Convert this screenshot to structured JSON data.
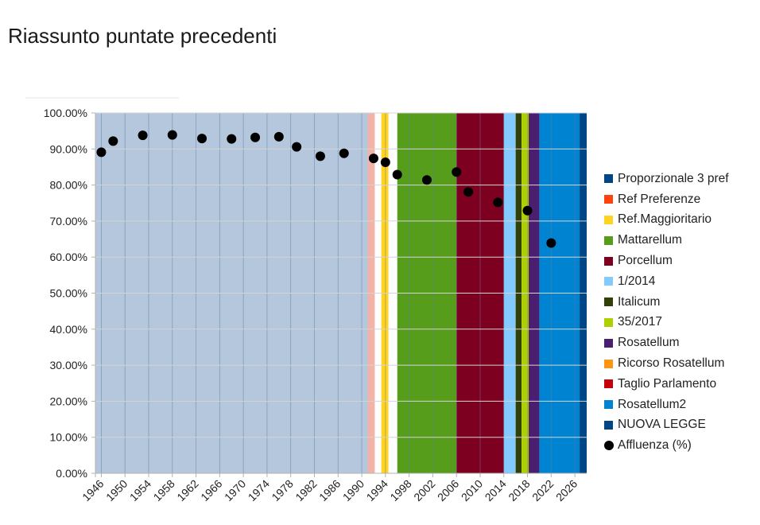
{
  "slide_title": "Riassunto puntate precedenti",
  "chart_data": {
    "type": "scatter",
    "title": "",
    "xlabel": "",
    "ylabel": "",
    "xlim": [
      1945,
      2028
    ],
    "ylim": [
      0,
      100
    ],
    "y_ticks": [
      "0.00%",
      "10.00%",
      "20.00%",
      "30.00%",
      "40.00%",
      "50.00%",
      "60.00%",
      "70.00%",
      "80.00%",
      "90.00%",
      "100.00%"
    ],
    "x_ticks": [
      "1946",
      "1950",
      "1954",
      "1958",
      "1962",
      "1966",
      "1970",
      "1974",
      "1978",
      "1982",
      "1986",
      "1990",
      "1994",
      "1998",
      "2002",
      "2006",
      "2010",
      "2014",
      "2018",
      "2022",
      "2026"
    ],
    "background_periods": [
      {
        "name": "Proporzionale 3 pref",
        "start": 1945,
        "end": 1991,
        "color": "#b4c7dc"
      },
      {
        "name": "Ref Preferenze",
        "start": 1991,
        "end": 1992.2,
        "color": "#f2b3a8"
      },
      {
        "name": "Ref.Maggioritario",
        "start": 1993.3,
        "end": 1994.5,
        "color": "#ffd320"
      },
      {
        "name": "Mattarellum",
        "start": 1996,
        "end": 2006,
        "color": "#579d1c"
      },
      {
        "name": "Porcellum",
        "start": 2006,
        "end": 2014,
        "color": "#7e0021"
      },
      {
        "name": "1/2014",
        "start": 2014,
        "end": 2016,
        "color": "#83caff"
      },
      {
        "name": "Italicum",
        "start": 2016,
        "end": 2017,
        "color": "#314004"
      },
      {
        "name": "35/2017",
        "start": 2017,
        "end": 2018.2,
        "color": "#aecf00"
      },
      {
        "name": "Rosatellum",
        "start": 2018.2,
        "end": 2020,
        "color": "#4b1f6f"
      },
      {
        "name": "Ricorso Rosatellum",
        "start": 2020,
        "end": 2020,
        "color": "#ff950e"
      },
      {
        "name": "Taglio Parlamento",
        "start": 2020,
        "end": 2020,
        "color": "#c5000b"
      },
      {
        "name": "Rosatellum2",
        "start": 2020,
        "end": 2026.8,
        "color": "#0084d1"
      },
      {
        "name": "NUOVA LEGGE",
        "start": 2026.8,
        "end": 2028,
        "color": "#004586"
      }
    ],
    "series": [
      {
        "name": "Affluenza (%)",
        "color": "#000000",
        "x": [
          1946,
          1948,
          1953,
          1958,
          1963,
          1968,
          1972,
          1976,
          1979,
          1983,
          1987,
          1992,
          1994,
          1996,
          2001,
          2006,
          2008,
          2013,
          2018,
          2022
        ],
        "y": [
          89.1,
          92.2,
          93.8,
          93.9,
          92.9,
          92.8,
          93.2,
          93.4,
          90.6,
          88.0,
          88.8,
          87.4,
          86.3,
          82.9,
          81.4,
          83.6,
          78.1,
          75.2,
          72.9,
          63.9
        ]
      }
    ],
    "legend_position": "right"
  },
  "legend": [
    {
      "label": "Proporzionale 3 pref",
      "color": "#004586"
    },
    {
      "label": "Ref Preferenze",
      "color": "#ff420e"
    },
    {
      "label": "Ref.Maggioritario",
      "color": "#ffd320"
    },
    {
      "label": "Mattarellum",
      "color": "#579d1c"
    },
    {
      "label": "Porcellum",
      "color": "#7e0021"
    },
    {
      "label": "1/2014",
      "color": "#83caff"
    },
    {
      "label": "Italicum",
      "color": "#314004"
    },
    {
      "label": "35/2017",
      "color": "#aecf00"
    },
    {
      "label": "Rosatellum",
      "color": "#4b1f6f"
    },
    {
      "label": "Ricorso Rosatellum",
      "color": "#ff950e"
    },
    {
      "label": "Taglio Parlamento",
      "color": "#c5000b"
    },
    {
      "label": "Rosatellum2",
      "color": "#0084d1"
    },
    {
      "label": "NUOVA LEGGE",
      "color": "#004586"
    },
    {
      "label": "Affluenza (%)",
      "color": "#000000",
      "marker": "dot"
    }
  ]
}
